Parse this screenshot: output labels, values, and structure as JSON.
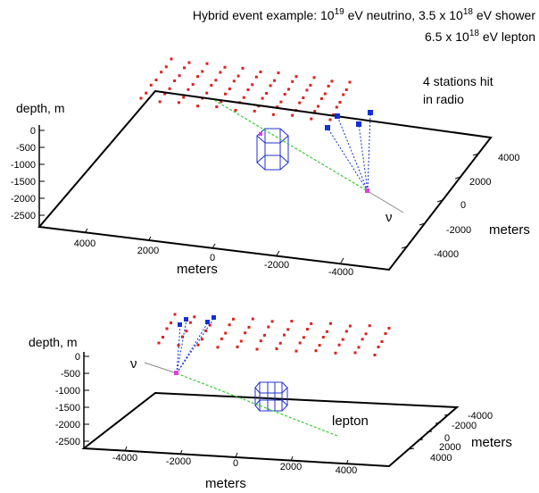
{
  "chart_data": [
    {
      "type": "scatter3d",
      "title_lines": [
        {
          "text": "Hybrid event example: 10",
          "sup": "19",
          "tail": " eV neutrino, 3.5 x 10",
          "sup2": "18",
          "tail2": " eV shower"
        },
        {
          "text": "6.5 x 10",
          "sup": "18",
          "tail": " eV lepton"
        }
      ],
      "annotation_lines": [
        "4 stations hit",
        "in radio"
      ],
      "zlabel": "depth, m",
      "xlabel": "meters",
      "ylabel": "meters",
      "z_ticks": [
        "0",
        "-500",
        "-1000",
        "-1500",
        "-2000",
        "-2500"
      ],
      "x_ticks": [
        "4000",
        "2000",
        "0",
        "-2000",
        "-4000"
      ],
      "y_ticks": [
        "4000",
        "2000",
        "0",
        "-2000",
        "-4000"
      ],
      "particle_label": "ν",
      "stations_hit": 4,
      "colors": {
        "stations": "#e0201c",
        "hit": "#1030d8",
        "track": "#30cc30",
        "detector": "#2030d0",
        "vertex": "#e040e0",
        "nu": "#888888"
      }
    },
    {
      "type": "scatter3d",
      "zlabel": "depth, m",
      "xlabel": "meters",
      "ylabel": "meters",
      "z_ticks": [
        "0",
        "-500",
        "-1000",
        "-1500",
        "-2000",
        "-2500"
      ],
      "x_ticks": [
        "-4000",
        "-2000",
        "0",
        "2000",
        "4000"
      ],
      "y_ticks": [
        "-4000",
        "-2000",
        "0",
        "2000",
        "4000"
      ],
      "particle_label": "ν",
      "track_label": "lepton",
      "stations_hit": 4,
      "colors": {
        "stations": "#e0201c",
        "hit": "#1030d8",
        "track": "#30cc30",
        "detector": "#2030d0",
        "vertex": "#e040e0",
        "nu": "#888888"
      }
    }
  ]
}
